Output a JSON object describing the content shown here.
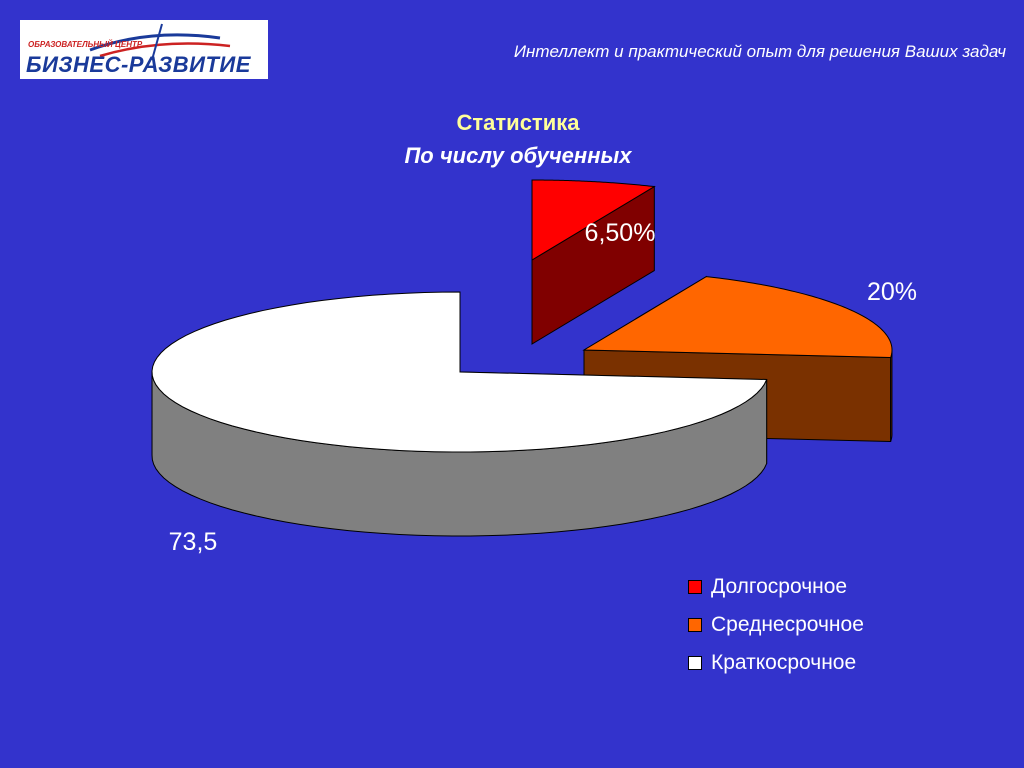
{
  "header": {
    "logo_small": "ОБРАЗОВАТЕЛЬНЫЙ ЦЕНТР",
    "logo_big": "БИЗНЕС-РАЗВИТИЕ",
    "tagline": "Интеллект и практический опыт для решения Ваших задач"
  },
  "chart_data": {
    "type": "pie",
    "title": "Статистика",
    "subtitle": "По числу обученных",
    "slices": [
      {
        "name": "Долгосрочное",
        "value": 6.5,
        "label": "6,50%",
        "color": "#FF0000",
        "side_color": "#800000"
      },
      {
        "name": "Среднесрочное",
        "value": 20,
        "label": "20%",
        "color": "#FF6600",
        "side_color": "#7A3100"
      },
      {
        "name": "Краткосрочное",
        "value": 73.5,
        "label": "73,5",
        "color": "#FFFFFF",
        "side_color": "#808080"
      }
    ],
    "legend_position": "bottom-right",
    "style": "3d-exploded"
  },
  "colors": {
    "background": "#3333CC",
    "title": "#FFFF99",
    "text": "#FFFFFF"
  }
}
